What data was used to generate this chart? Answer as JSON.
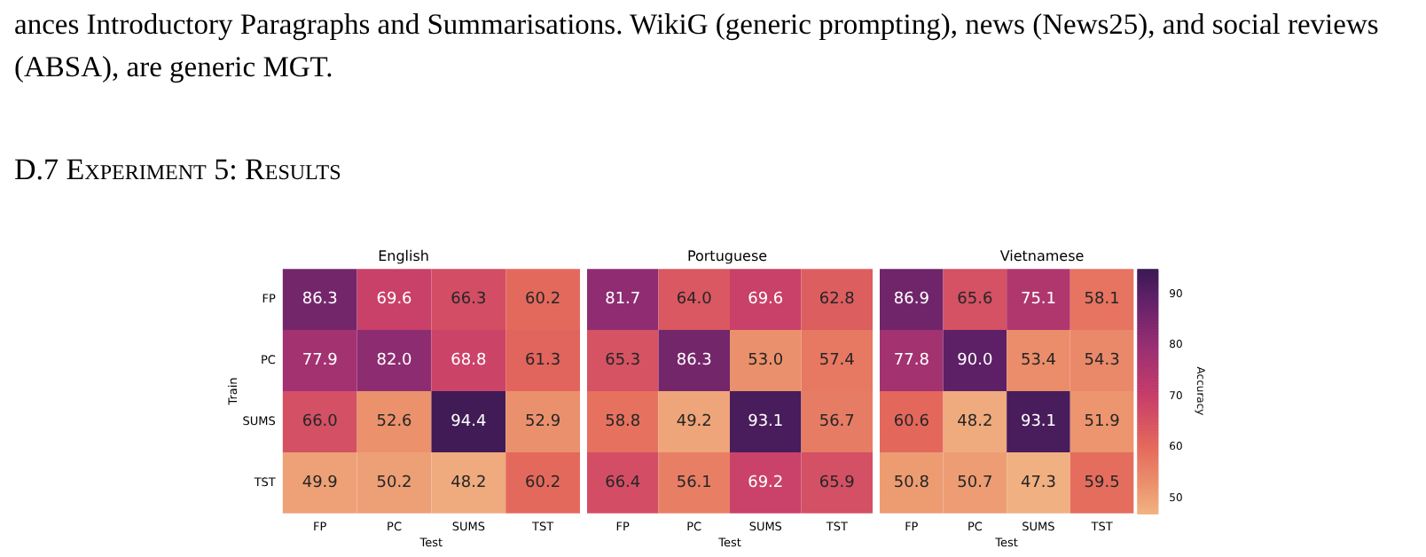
{
  "chart_data": [
    {
      "type": "heatmap",
      "title": "English",
      "xlabel": "Test",
      "ylabel": "Train",
      "annotations": [
        "ances Introductory Paragraphs and Summarisations. WikiG (generic prompting), news (News25), and social reviews (ABSA), are generic MGT.",
        "D.7 Experiment 5: Results"
      ],
      "categories": [
        "FP",
        "PC",
        "SUMS",
        "TST"
      ],
      "y_categories": [
        "FP",
        "PC",
        "SUMS",
        "TST"
      ],
      "cells": [
        [
          86.3,
          69.6,
          66.3,
          60.2
        ],
        [
          77.9,
          82.0,
          68.8,
          61.3
        ],
        [
          66.0,
          52.6,
          94.4,
          52.9
        ],
        [
          49.9,
          50.2,
          48.2,
          60.2
        ]
      ],
      "cell_labels": [
        [
          "86.3",
          "69.6",
          "66.3",
          "60.2"
        ],
        [
          "77.9",
          "82.0",
          "68.8",
          "61.3"
        ],
        [
          "66.0",
          "52.6",
          "94.4",
          "52.9"
        ],
        [
          "49.9",
          "50.2",
          "48.2",
          "60.2"
        ]
      ]
    },
    {
      "type": "heatmap",
      "title": "Portuguese",
      "xlabel": "Test",
      "tick_labels": "x",
      "categories": [
        "FP",
        "PC",
        "SUMS",
        "TST"
      ],
      "y_categories": [
        null,
        null,
        null,
        null
      ],
      "cells": [
        [
          81.7,
          64.0,
          69.6,
          62.8
        ],
        [
          65.3,
          86.3,
          53.0,
          57.4
        ],
        [
          58.8,
          49.2,
          93.1,
          56.7
        ],
        [
          66.4,
          56.1,
          69.2,
          65.9
        ]
      ],
      "cell_labels": [
        [
          "81.7",
          "64.0",
          "69.6",
          "62.8"
        ],
        [
          "65.3",
          "86.3",
          "53.0",
          "57.4"
        ],
        [
          "58.8",
          "49.2",
          "93.1",
          "56.7"
        ],
        [
          "66.4",
          "56.1",
          "69.2",
          "65.9"
        ]
      ]
    },
    {
      "type": "heatmap",
      "title": "Vietnamese",
      "xlabel": "Test",
      "tick_labels": "x",
      "categories": [
        "FP",
        "PC",
        "SUMS",
        "TST"
      ],
      "y_categories": [
        null,
        null,
        null,
        null
      ],
      "cells": [
        [
          86.9,
          65.6,
          75.1,
          58.1
        ],
        [
          77.8,
          90.0,
          53.4,
          54.3
        ],
        [
          60.6,
          48.2,
          93.1,
          51.9
        ],
        [
          50.8,
          50.7,
          47.3,
          59.5
        ]
      ],
      "cell_labels": [
        [
          "86.9",
          "65.6",
          "75.1",
          "58.1"
        ],
        [
          "77.8",
          "90.0",
          "53.4",
          "54.3"
        ],
        [
          "60.6",
          "48.2",
          "93.1",
          "51.9"
        ],
        [
          "50.8",
          "50.7",
          "47.3",
          "59.5"
        ]
      ],
      "clim": [
        47,
        95
      ],
      "cticks": [
        50,
        60,
        70,
        80,
        90
      ],
      "clabel": "Accuracy"
    }
  ]
}
